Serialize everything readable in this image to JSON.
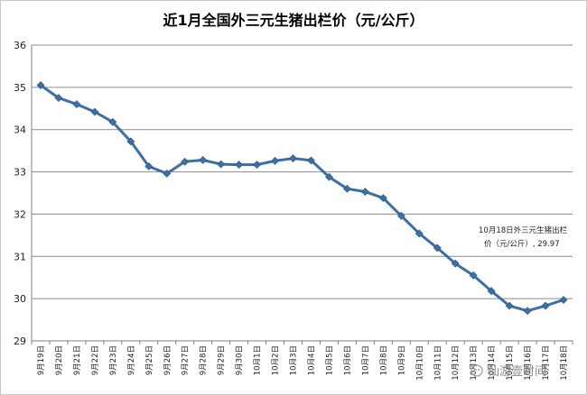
{
  "chart_data": {
    "type": "line",
    "title": "近1月全国外三元生猪出栏价（元/公斤）",
    "xlabel": "",
    "ylabel": "",
    "ylim": [
      29,
      36
    ],
    "yticks": [
      29,
      30,
      31,
      32,
      33,
      34,
      35,
      36
    ],
    "grid": true,
    "legend": "none",
    "categories": [
      "9月19日",
      "9月20日",
      "9月21日",
      "9月22日",
      "9月23日",
      "9月24日",
      "9月25日",
      "9月26日",
      "9月27日",
      "9月28日",
      "9月29日",
      "9月30日",
      "10月1日",
      "10月2日",
      "10月3日",
      "10月4日",
      "10月5日",
      "10月6日",
      "10月7日",
      "10月8日",
      "10月9日",
      "10月10日",
      "10月11日",
      "10月12日",
      "10月13日",
      "10月14日",
      "10月15日",
      "10月16日",
      "10月17日",
      "10月18日"
    ],
    "series": [
      {
        "color": "#3b6fa6",
        "values": [
          35.05,
          34.75,
          34.6,
          34.42,
          34.18,
          33.72,
          33.13,
          32.96,
          33.24,
          33.28,
          33.18,
          33.17,
          33.17,
          33.26,
          33.32,
          33.27,
          32.88,
          32.6,
          32.53,
          32.38,
          31.96,
          31.54,
          31.2,
          30.83,
          30.55,
          30.18,
          29.83,
          29.71,
          29.83,
          29.97
        ]
      }
    ],
    "annotation": {
      "line1": "10月18日外三元生猪出栏",
      "line2": "价（元/公斤）, 29.97"
    }
  },
  "watermark": "仙游壹时间",
  "colors": {
    "line": "#3b6fa6",
    "grid": "#8c8c8c",
    "axis": "#7f7f7f"
  }
}
